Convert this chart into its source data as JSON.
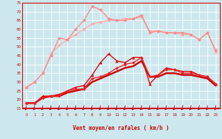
{
  "xlabel": "Vent moyen/en rafales ( km/h )",
  "background_color": "#cce8ee",
  "grid_color": "#ffffff",
  "x": [
    0,
    1,
    2,
    3,
    4,
    5,
    6,
    7,
    8,
    9,
    10,
    11,
    12,
    13,
    14,
    15,
    16,
    17,
    18,
    19,
    20,
    21,
    22,
    23
  ],
  "series": [
    {
      "name": "line_dark_red_thick",
      "color": "#cc0000",
      "linewidth": 1.8,
      "marker": null,
      "markersize": 0,
      "y": [
        18,
        18,
        21,
        22,
        22,
        24,
        25,
        26,
        30,
        32,
        34,
        36,
        38,
        39,
        42,
        33,
        33,
        35,
        35,
        34,
        34,
        33,
        32,
        28
      ]
    },
    {
      "name": "line_red_triangle",
      "color": "#dd0000",
      "linewidth": 1.0,
      "marker": "^",
      "markersize": 2.5,
      "y": [
        18,
        18,
        22,
        22,
        23,
        25,
        27,
        28,
        34,
        41,
        46,
        42,
        41,
        44,
        44,
        29,
        34,
        38,
        37,
        36,
        36,
        34,
        33,
        29
      ]
    },
    {
      "name": "line_red_diamond",
      "color": "#ee2222",
      "linewidth": 1.0,
      "marker": "D",
      "markersize": 2.0,
      "y": [
        18,
        18,
        21,
        22,
        22,
        25,
        26,
        26,
        32,
        33,
        35,
        38,
        40,
        41,
        44,
        33,
        34,
        37,
        37,
        35,
        35,
        34,
        33,
        29
      ]
    },
    {
      "name": "line_light_pink_upper",
      "color": "#ffaaaa",
      "linewidth": 1.0,
      "marker": "o",
      "markersize": 2.5,
      "y": [
        27,
        30,
        35,
        46,
        51,
        54,
        57,
        60,
        63,
        64,
        65,
        65,
        66,
        66,
        67,
        59,
        59,
        58,
        58,
        57,
        57,
        54,
        58,
        47
      ]
    },
    {
      "name": "line_pink_upper2",
      "color": "#ff8888",
      "linewidth": 1.0,
      "marker": "o",
      "markersize": 2.5,
      "y": [
        27,
        30,
        35,
        45,
        55,
        54,
        60,
        65,
        73,
        71,
        66,
        65,
        65,
        66,
        68,
        58,
        59,
        58,
        58,
        58,
        57,
        54,
        58,
        48
      ]
    }
  ],
  "ylim": [
    15,
    75
  ],
  "yticks": [
    15,
    20,
    25,
    30,
    35,
    40,
    45,
    50,
    55,
    60,
    65,
    70,
    75
  ],
  "xlim": [
    -0.5,
    23.5
  ],
  "xticks": [
    0,
    1,
    2,
    3,
    4,
    5,
    6,
    7,
    8,
    9,
    10,
    11,
    12,
    13,
    14,
    15,
    16,
    17,
    18,
    19,
    20,
    21,
    22,
    23
  ],
  "tick_color": "#cc0000",
  "label_color": "#cc0000",
  "spine_color": "#cc0000"
}
